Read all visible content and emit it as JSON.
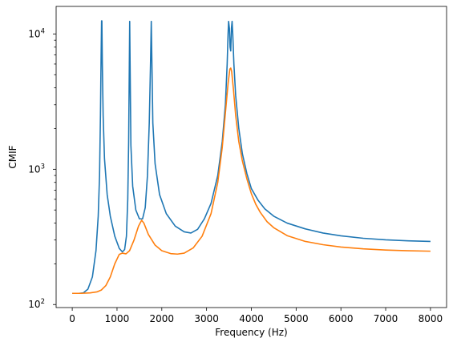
{
  "chart_data": {
    "type": "line",
    "title": "",
    "xlabel": "Frequency (Hz)",
    "ylabel": "CMIF",
    "yscale": "log",
    "xlim": [
      -360,
      8360
    ],
    "ylim": [
      95,
      16000
    ],
    "grid": false,
    "x_ticks": [
      0,
      1000,
      2000,
      3000,
      4000,
      5000,
      6000,
      7000,
      8000
    ],
    "x_tick_labels": [
      "0",
      "1000",
      "2000",
      "3000",
      "4000",
      "5000",
      "6000",
      "7000",
      "8000"
    ],
    "y_ticks": [
      100,
      1000,
      10000
    ],
    "y_tick_labels": [
      {
        "base": "10",
        "exp": "2"
      },
      {
        "base": "10",
        "exp": "3"
      },
      {
        "base": "10",
        "exp": "4"
      }
    ],
    "series": [
      {
        "color": "#1f77b4",
        "points": [
          [
            0,
            121
          ],
          [
            150,
            121
          ],
          [
            250,
            122
          ],
          [
            350,
            130
          ],
          [
            450,
            160
          ],
          [
            530,
            250
          ],
          [
            580,
            450
          ],
          [
            610,
            900
          ],
          [
            630,
            2500
          ],
          [
            645,
            7000
          ],
          [
            655,
            12500
          ],
          [
            662,
            12500
          ],
          [
            672,
            6000
          ],
          [
            690,
            2500
          ],
          [
            720,
            1200
          ],
          [
            780,
            650
          ],
          [
            850,
            450
          ],
          [
            950,
            320
          ],
          [
            1050,
            260
          ],
          [
            1120,
            245
          ],
          [
            1170,
            255
          ],
          [
            1210,
            320
          ],
          [
            1240,
            600
          ],
          [
            1260,
            1600
          ],
          [
            1275,
            6000
          ],
          [
            1283,
            12400
          ],
          [
            1292,
            6000
          ],
          [
            1310,
            1500
          ],
          [
            1350,
            750
          ],
          [
            1420,
            500
          ],
          [
            1500,
            430
          ],
          [
            1570,
            430
          ],
          [
            1630,
            520
          ],
          [
            1680,
            900
          ],
          [
            1720,
            2200
          ],
          [
            1750,
            6500
          ],
          [
            1765,
            12400
          ],
          [
            1778,
            6500
          ],
          [
            1800,
            2200
          ],
          [
            1850,
            1100
          ],
          [
            1950,
            650
          ],
          [
            2100,
            470
          ],
          [
            2300,
            380
          ],
          [
            2500,
            345
          ],
          [
            2650,
            338
          ],
          [
            2800,
            360
          ],
          [
            2950,
            430
          ],
          [
            3100,
            560
          ],
          [
            3250,
            900
          ],
          [
            3350,
            1600
          ],
          [
            3420,
            3000
          ],
          [
            3460,
            6000
          ],
          [
            3480,
            10000
          ],
          [
            3492,
            12400
          ],
          [
            3510,
            11000
          ],
          [
            3525,
            8000
          ],
          [
            3540,
            7500
          ],
          [
            3555,
            11000
          ],
          [
            3570,
            12400
          ],
          [
            3585,
            10000
          ],
          [
            3610,
            6000
          ],
          [
            3650,
            3500
          ],
          [
            3720,
            2000
          ],
          [
            3800,
            1300
          ],
          [
            3900,
            930
          ],
          [
            4000,
            720
          ],
          [
            4150,
            590
          ],
          [
            4300,
            510
          ],
          [
            4500,
            450
          ],
          [
            4800,
            400
          ],
          [
            5200,
            363
          ],
          [
            5600,
            338
          ],
          [
            6000,
            322
          ],
          [
            6500,
            309
          ],
          [
            7000,
            301
          ],
          [
            7500,
            296
          ],
          [
            8000,
            293
          ]
        ]
      },
      {
        "color": "#ff7f0e",
        "points": [
          [
            0,
            121
          ],
          [
            200,
            121
          ],
          [
            400,
            122
          ],
          [
            550,
            124
          ],
          [
            650,
            128
          ],
          [
            750,
            138
          ],
          [
            850,
            160
          ],
          [
            950,
            200
          ],
          [
            1050,
            235
          ],
          [
            1120,
            240
          ],
          [
            1200,
            237
          ],
          [
            1280,
            250
          ],
          [
            1380,
            300
          ],
          [
            1480,
            380
          ],
          [
            1550,
            420
          ],
          [
            1600,
            400
          ],
          [
            1700,
            330
          ],
          [
            1850,
            275
          ],
          [
            2000,
            250
          ],
          [
            2200,
            238
          ],
          [
            2350,
            236
          ],
          [
            2500,
            240
          ],
          [
            2700,
            262
          ],
          [
            2900,
            320
          ],
          [
            3100,
            470
          ],
          [
            3250,
            800
          ],
          [
            3350,
            1450
          ],
          [
            3420,
            2600
          ],
          [
            3480,
            4300
          ],
          [
            3520,
            5500
          ],
          [
            3540,
            5600
          ],
          [
            3560,
            5300
          ],
          [
            3600,
            3900
          ],
          [
            3650,
            2500
          ],
          [
            3720,
            1600
          ],
          [
            3800,
            1150
          ],
          [
            3900,
            850
          ],
          [
            4000,
            660
          ],
          [
            4100,
            550
          ],
          [
            4200,
            480
          ],
          [
            4350,
            410
          ],
          [
            4500,
            370
          ],
          [
            4800,
            323
          ],
          [
            5200,
            293
          ],
          [
            5600,
            277
          ],
          [
            6000,
            266
          ],
          [
            6500,
            258
          ],
          [
            7000,
            253
          ],
          [
            7500,
            250
          ],
          [
            8000,
            248
          ]
        ]
      }
    ]
  }
}
